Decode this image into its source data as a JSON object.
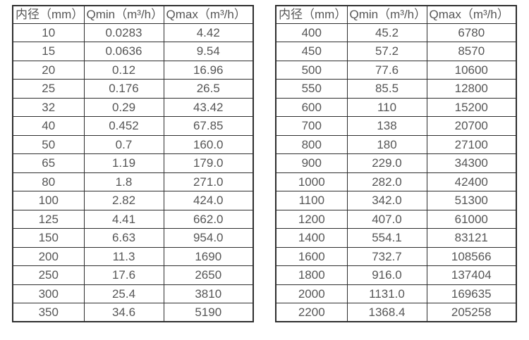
{
  "colors": {
    "border": "#2e2e2e",
    "text": "#565656",
    "background": "#ffffff"
  },
  "tables": [
    {
      "name": "flow-spec-table-left",
      "headers": [
        "内径（mm）",
        "Qmin（m³/h）",
        "Qmax（m³/h）"
      ],
      "rows": [
        [
          "10",
          "0.0283",
          "4.42"
        ],
        [
          "15",
          "0.0636",
          "9.54"
        ],
        [
          "20",
          "0.12",
          "16.96"
        ],
        [
          "25",
          "0.176",
          "26.5"
        ],
        [
          "32",
          "0.29",
          "43.42"
        ],
        [
          "40",
          "0.452",
          "67.85"
        ],
        [
          "50",
          "0.7",
          "160.0"
        ],
        [
          "65",
          "1.19",
          "179.0"
        ],
        [
          "80",
          "1.8",
          "271.0"
        ],
        [
          "100",
          "2.82",
          "424.0"
        ],
        [
          "125",
          "4.41",
          "662.0"
        ],
        [
          "150",
          "6.63",
          "954.0"
        ],
        [
          "200",
          "11.3",
          "1690"
        ],
        [
          "250",
          "17.6",
          "2650"
        ],
        [
          "300",
          "25.4",
          "3810"
        ],
        [
          "350",
          "34.6",
          "5190"
        ]
      ]
    },
    {
      "name": "flow-spec-table-right",
      "headers": [
        "内径（mm）",
        "Qmin（m³/h）",
        "Qmax（m³/h）"
      ],
      "rows": [
        [
          "400",
          "45.2",
          "6780"
        ],
        [
          "450",
          "57.2",
          "8570"
        ],
        [
          "500",
          "77.6",
          "10600"
        ],
        [
          "550",
          "85.5",
          "12800"
        ],
        [
          "600",
          "110",
          "15200"
        ],
        [
          "700",
          "138",
          "20700"
        ],
        [
          "800",
          "180",
          "27100"
        ],
        [
          "900",
          "229.0",
          "34300"
        ],
        [
          "1000",
          "282.0",
          "42400"
        ],
        [
          "1100",
          "342.0",
          "51300"
        ],
        [
          "1200",
          "407.0",
          "61000"
        ],
        [
          "1400",
          "554.1",
          "83121"
        ],
        [
          "1600",
          "732.7",
          "108566"
        ],
        [
          "1800",
          "916.0",
          "137404"
        ],
        [
          "2000",
          "1131.0",
          "169635"
        ],
        [
          "2200",
          "1368.4",
          "205258"
        ]
      ]
    }
  ]
}
